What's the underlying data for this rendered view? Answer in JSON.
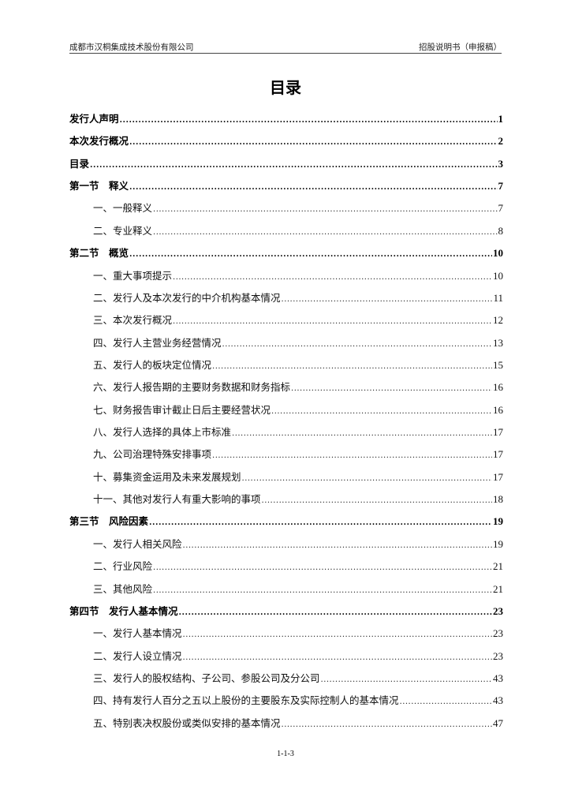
{
  "header": {
    "company": "成都市汉桐集成技术股份有限公司",
    "doc_type": "招股说明书（申报稿）"
  },
  "title": "目录",
  "toc": [
    {
      "level": "top",
      "title": "发行人声明",
      "page": "1"
    },
    {
      "level": "top",
      "title": "本次发行概况",
      "page": "2"
    },
    {
      "level": "top",
      "title": "目录",
      "page": "3"
    },
    {
      "level": "sec",
      "title": "第一节　释义",
      "page": "7"
    },
    {
      "level": "sub",
      "title": "一、一般释义",
      "page": "7"
    },
    {
      "level": "sub",
      "title": "二、专业释义",
      "page": "8"
    },
    {
      "level": "sec",
      "title": "第二节　概览",
      "page": "10"
    },
    {
      "level": "sub",
      "title": "一、重大事项提示",
      "page": "10"
    },
    {
      "level": "sub",
      "title": "二、发行人及本次发行的中介机构基本情况",
      "page": "11"
    },
    {
      "level": "sub",
      "title": "三、本次发行概况",
      "page": "12"
    },
    {
      "level": "sub",
      "title": "四、发行人主营业务经营情况",
      "page": "13"
    },
    {
      "level": "sub",
      "title": "五、发行人的板块定位情况",
      "page": "15"
    },
    {
      "level": "sub",
      "title": "六、发行人报告期的主要财务数据和财务指标",
      "page": "16"
    },
    {
      "level": "sub",
      "title": "七、财务报告审计截止日后主要经营状况",
      "page": "16"
    },
    {
      "level": "sub",
      "title": "八、发行人选择的具体上市标准",
      "page": "17"
    },
    {
      "level": "sub",
      "title": "九、公司治理特殊安排事项",
      "page": "17"
    },
    {
      "level": "sub",
      "title": "十、募集资金运用及未来发展规划",
      "page": "17"
    },
    {
      "level": "sub",
      "title": "十一、其他对发行人有重大影响的事项",
      "page": "18"
    },
    {
      "level": "sec",
      "title": "第三节　风险因素",
      "page": "19"
    },
    {
      "level": "sub",
      "title": "一、发行人相关风险",
      "page": "19"
    },
    {
      "level": "sub",
      "title": "二、行业风险",
      "page": "21"
    },
    {
      "level": "sub",
      "title": "三、其他风险",
      "page": "21"
    },
    {
      "level": "sec",
      "title": "第四节　发行人基本情况",
      "page": "23"
    },
    {
      "level": "sub",
      "title": "一、发行人基本情况",
      "page": "23"
    },
    {
      "level": "sub",
      "title": "二、发行人设立情况",
      "page": "23"
    },
    {
      "level": "sub",
      "title": "三、发行人的股权结构、子公司、参股公司及分公司",
      "page": "43"
    },
    {
      "level": "sub",
      "title": "四、持有发行人百分之五以上股份的主要股东及实际控制人的基本情况",
      "page": "43"
    },
    {
      "level": "sub",
      "title": "五、特别表决权股份或类似安排的基本情况",
      "page": "47"
    }
  ],
  "footer": {
    "page_number": "1-1-3"
  }
}
